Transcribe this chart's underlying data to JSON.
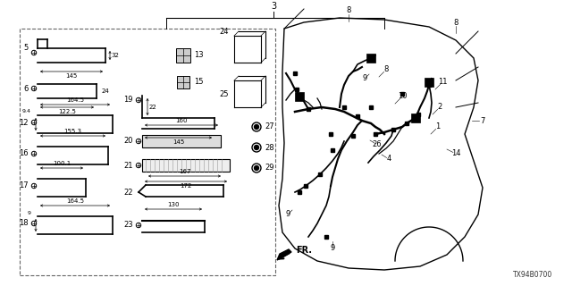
{
  "bg_color": "#ffffff",
  "diagram_code": "TX94B0700",
  "fig_w": 6.4,
  "fig_h": 3.2,
  "dpi": 100,
  "gray": "#888888",
  "light_gray": "#cccccc"
}
